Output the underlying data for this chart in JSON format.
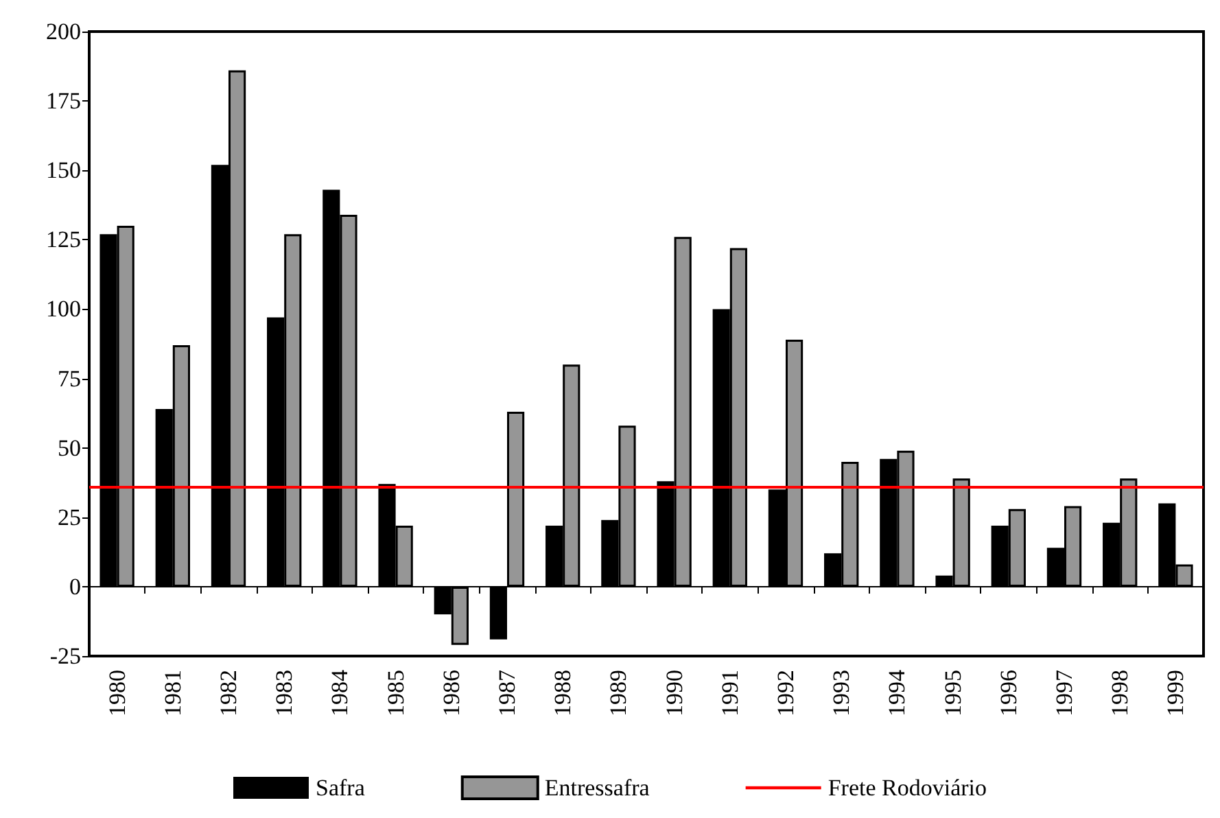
{
  "chart_data": {
    "type": "bar",
    "categories": [
      "1980",
      "1981",
      "1982",
      "1983",
      "1984",
      "1985",
      "1986",
      "1987",
      "1988",
      "1989",
      "1990",
      "1991",
      "1992",
      "1993",
      "1994",
      "1995",
      "1996",
      "1997",
      "1998",
      "1999"
    ],
    "series": [
      {
        "name": "Safra",
        "color": "#000000",
        "values": [
          127,
          64,
          152,
          97,
          143,
          37,
          -10,
          -19,
          22,
          24,
          38,
          100,
          35,
          12,
          46,
          4,
          22,
          14,
          23,
          30
        ]
      },
      {
        "name": "Entressafra",
        "color": "#969696",
        "values": [
          130,
          87,
          186,
          127,
          134,
          22,
          -21,
          63,
          80,
          58,
          126,
          122,
          89,
          45,
          49,
          39,
          28,
          29,
          39,
          8
        ]
      }
    ],
    "ylim": [
      -25,
      200
    ],
    "yticks": [
      -25,
      0,
      25,
      50,
      75,
      100,
      125,
      150,
      175,
      200
    ],
    "legend": "bottom",
    "ref_lines": [
      {
        "axis": "y",
        "value": 36,
        "label": "Frete Rodoviário",
        "color": "#ff0000",
        "line_style": "solid"
      }
    ]
  }
}
